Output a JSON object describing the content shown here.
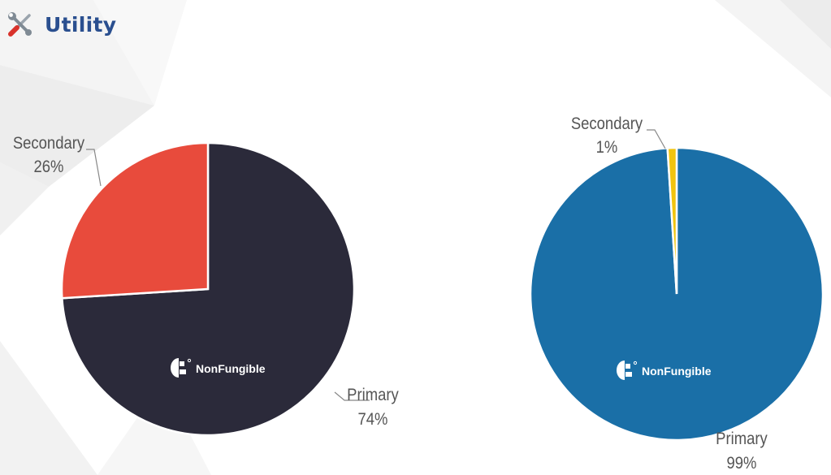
{
  "page": {
    "title": "Utility",
    "title_icon": "tools-icon",
    "title_color": "#2a4f8f"
  },
  "chart_data": [
    {
      "type": "pie",
      "slices": [
        {
          "label": "Primary",
          "value": 74,
          "value_label": "74%",
          "color": "#2b2a3a"
        },
        {
          "label": "Secondary",
          "value": 26,
          "value_label": "26%",
          "color": "#e84b3c"
        }
      ],
      "watermark": "NonFungible",
      "watermark_icon": "nonfungible-logo-icon"
    },
    {
      "type": "pie",
      "slices": [
        {
          "label": "Primary",
          "value": 99,
          "value_label": "99%",
          "color": "#1a6fa7"
        },
        {
          "label": "Secondary",
          "value": 1,
          "value_label": "1%",
          "color": "#f1c40f"
        }
      ],
      "watermark": "NonFungible",
      "watermark_icon": "nonfungible-logo-icon"
    }
  ]
}
